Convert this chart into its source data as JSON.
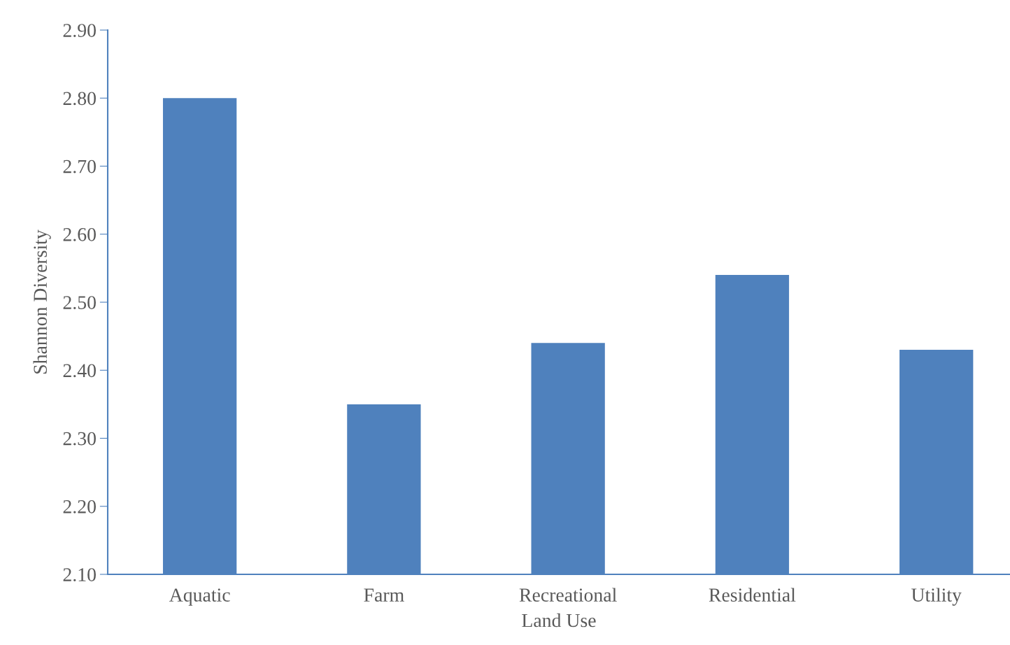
{
  "chart_data": {
    "type": "bar",
    "xlabel": "Land Use",
    "ylabel": "Shannon Diversity",
    "categories": [
      "Aquatic",
      "Farm",
      "Recreational",
      "Residential",
      "Utility"
    ],
    "values": [
      2.8,
      2.35,
      2.44,
      2.54,
      2.43
    ],
    "color": "#4f81bd",
    "ylim": [
      2.1,
      2.9
    ],
    "yticks": [
      {
        "value": 2.1,
        "label": "2.10"
      },
      {
        "value": 2.2,
        "label": "2.20"
      },
      {
        "value": 2.3,
        "label": "2.30"
      },
      {
        "value": 2.4,
        "label": "2.40"
      },
      {
        "value": 2.5,
        "label": "2.50"
      },
      {
        "value": 2.6,
        "label": "2.60"
      },
      {
        "value": 2.7,
        "label": "2.70"
      },
      {
        "value": 2.8,
        "label": "2.80"
      },
      {
        "value": 2.9,
        "label": "2.90"
      }
    ],
    "grid": false,
    "legend": false
  }
}
